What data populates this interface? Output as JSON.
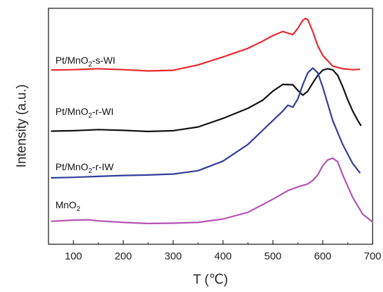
{
  "chart_data": {
    "type": "line",
    "xlabel": "T (℃)",
    "ylabel": "Intensity (a.u.)",
    "xlim": [
      50,
      700
    ],
    "x_ticks": [
      100,
      200,
      300,
      400,
      500,
      600,
      700
    ],
    "y_ticks_shown": false,
    "grid": false,
    "legend": "inline labels left of each curve",
    "series": [
      {
        "name": "Pt/MnO2-s-WI",
        "label_parts": [
          "Pt/MnO",
          "2",
          "-s-WI"
        ],
        "color": "#e8282d",
        "x": [
          55,
          100,
          150,
          200,
          250,
          300,
          350,
          400,
          450,
          480,
          500,
          520,
          530,
          540,
          550,
          560,
          565,
          570,
          580,
          590,
          600,
          620,
          640,
          660,
          675
        ],
        "y": [
          0.4,
          0.5,
          0.8,
          0.5,
          0.1,
          0.3,
          2.0,
          4.5,
          7.2,
          9.5,
          11.2,
          12.5,
          12.0,
          11.5,
          13.5,
          16.0,
          16.6,
          16.2,
          12.5,
          8.0,
          5.0,
          1.6,
          0.8,
          0.5,
          0.6
        ]
      },
      {
        "name": "Pt/MnO2-r-WI",
        "label_parts": [
          "Pt/MnO",
          "2",
          "-r-WI"
        ],
        "color": "#111111",
        "x": [
          55,
          100,
          150,
          200,
          250,
          300,
          350,
          400,
          450,
          480,
          500,
          520,
          540,
          550,
          560,
          570,
          580,
          590,
          600,
          610,
          620,
          630,
          640,
          650,
          660,
          670,
          677
        ],
        "y": [
          0.1,
          0.2,
          0.5,
          0.3,
          0.0,
          0.2,
          1.2,
          3.5,
          6.2,
          8.4,
          10.8,
          12.6,
          12.5,
          11.0,
          9.7,
          10.8,
          13.0,
          15.0,
          16.4,
          16.8,
          16.5,
          15.0,
          12.0,
          8.5,
          5.5,
          3.0,
          1.5
        ]
      },
      {
        "name": "Pt/MnO2-r-IW",
        "label_parts": [
          "Pt/MnO",
          "2",
          "-r-IW"
        ],
        "color": "#2f3d9c",
        "x": [
          55,
          100,
          150,
          200,
          250,
          300,
          350,
          400,
          450,
          480,
          500,
          520,
          530,
          540,
          550,
          560,
          570,
          580,
          590,
          600,
          620,
          640,
          660,
          675
        ],
        "y": [
          0.0,
          0.1,
          0.3,
          0.5,
          0.6,
          0.8,
          1.5,
          3.5,
          7.0,
          10.0,
          12.0,
          14.0,
          15.2,
          14.8,
          16.5,
          19.5,
          22.0,
          23.0,
          22.0,
          19.0,
          12.0,
          7.0,
          3.0,
          1.0
        ]
      },
      {
        "name": "MnO2",
        "label_parts": [
          "MnO",
          "2",
          ""
        ],
        "color": "#b452b4",
        "x": [
          55,
          100,
          130,
          150,
          200,
          250,
          300,
          350,
          400,
          450,
          500,
          530,
          550,
          560,
          570,
          580,
          590,
          600,
          610,
          620,
          630,
          640,
          660,
          680,
          700
        ],
        "y": [
          0.6,
          0.9,
          1.0,
          0.7,
          0.3,
          0.0,
          0.1,
          0.3,
          1.2,
          3.0,
          6.5,
          8.8,
          9.8,
          10.2,
          10.6,
          11.5,
          13.0,
          15.5,
          17.0,
          17.5,
          16.5,
          13.0,
          7.0,
          2.5,
          0.4
        ]
      }
    ]
  }
}
